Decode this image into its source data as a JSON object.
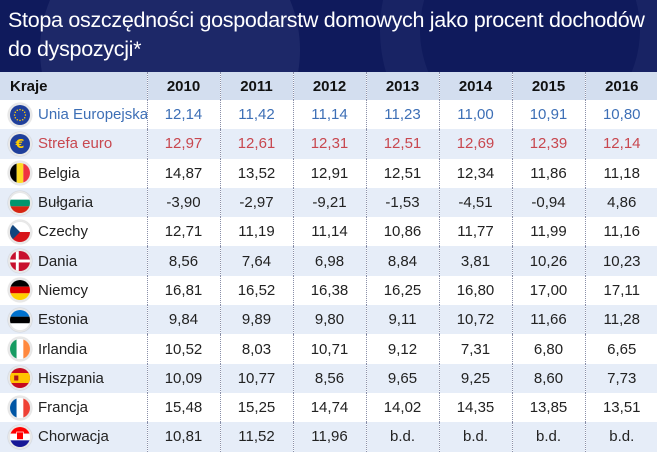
{
  "title": "Stopa oszczędności gospodarstw domowych jako procent dochodów do dyspozycji*",
  "table": {
    "header": [
      "Kraje",
      "2010",
      "2011",
      "2012",
      "2013",
      "2014",
      "2015",
      "2016"
    ],
    "rows": [
      {
        "country": "Unia Europejska",
        "flag": "eu-flag-icon",
        "values": [
          "12,14",
          "11,42",
          "11,14",
          "11,23",
          "11,00",
          "10,91",
          "10,80"
        ]
      },
      {
        "country": "Strefa euro",
        "flag": "euro-sign-icon",
        "values": [
          "12,97",
          "12,61",
          "12,31",
          "12,51",
          "12,69",
          "12,39",
          "12,14"
        ]
      },
      {
        "country": "Belgia",
        "flag": "belgium-flag-icon",
        "values": [
          "14,87",
          "13,52",
          "12,91",
          "12,51",
          "12,34",
          "11,86",
          "11,18"
        ]
      },
      {
        "country": "Bułgaria",
        "flag": "bulgaria-flag-icon",
        "values": [
          "-3,90",
          "-2,97",
          "-9,21",
          "-1,53",
          "-4,51",
          "-0,94",
          "4,86"
        ]
      },
      {
        "country": "Czechy",
        "flag": "czech-flag-icon",
        "values": [
          "12,71",
          "11,19",
          "11,14",
          "10,86",
          "11,77",
          "11,99",
          "11,16"
        ]
      },
      {
        "country": "Dania",
        "flag": "denmark-flag-icon",
        "values": [
          "8,56",
          "7,64",
          "6,98",
          "8,84",
          "3,81",
          "10,26",
          "10,23"
        ]
      },
      {
        "country": "Niemcy",
        "flag": "germany-flag-icon",
        "values": [
          "16,81",
          "16,52",
          "16,38",
          "16,25",
          "16,80",
          "17,00",
          "17,11"
        ]
      },
      {
        "country": "Estonia",
        "flag": "estonia-flag-icon",
        "values": [
          "9,84",
          "9,89",
          "9,80",
          "9,11",
          "10,72",
          "11,66",
          "11,28"
        ]
      },
      {
        "country": "Irlandia",
        "flag": "ireland-flag-icon",
        "values": [
          "10,52",
          "8,03",
          "10,71",
          "9,12",
          "7,31",
          "6,80",
          "6,65"
        ]
      },
      {
        "country": "Hiszpania",
        "flag": "spain-flag-icon",
        "values": [
          "10,09",
          "10,77",
          "8,56",
          "9,65",
          "9,25",
          "8,60",
          "7,73"
        ]
      },
      {
        "country": "Francja",
        "flag": "france-flag-icon",
        "values": [
          "15,48",
          "15,25",
          "14,74",
          "14,02",
          "14,35",
          "13,85",
          "13,51"
        ]
      },
      {
        "country": "Chorwacja",
        "flag": "croatia-flag-icon",
        "values": [
          "10,81",
          "11,52",
          "11,96",
          "b.d.",
          "b.d.",
          "b.d.",
          "b.d."
        ]
      }
    ]
  },
  "colors": {
    "header_bg": "#0f1a5c",
    "column_header_bg": "#d3deef",
    "eu_text": "#3d6fb6",
    "eurozone_text": "#c8474f",
    "row_alt_bg": "#e6edf8"
  },
  "chart_data": {
    "type": "table",
    "title": "Stopa oszczędności gospodarstw domowych jako procent dochodów do dyspozycji*",
    "columns": [
      "Kraje",
      "2010",
      "2011",
      "2012",
      "2013",
      "2014",
      "2015",
      "2016"
    ],
    "x": [
      2010,
      2011,
      2012,
      2013,
      2014,
      2015,
      2016
    ],
    "series": [
      {
        "name": "Unia Europejska",
        "values": [
          12.14,
          11.42,
          11.14,
          11.23,
          11.0,
          10.91,
          10.8
        ]
      },
      {
        "name": "Strefa euro",
        "values": [
          12.97,
          12.61,
          12.31,
          12.51,
          12.69,
          12.39,
          12.14
        ]
      },
      {
        "name": "Belgia",
        "values": [
          14.87,
          13.52,
          12.91,
          12.51,
          12.34,
          11.86,
          11.18
        ]
      },
      {
        "name": "Bułgaria",
        "values": [
          -3.9,
          -2.97,
          -9.21,
          -1.53,
          -4.51,
          -0.94,
          4.86
        ]
      },
      {
        "name": "Czechy",
        "values": [
          12.71,
          11.19,
          11.14,
          10.86,
          11.77,
          11.99,
          11.16
        ]
      },
      {
        "name": "Dania",
        "values": [
          8.56,
          7.64,
          6.98,
          8.84,
          3.81,
          10.26,
          10.23
        ]
      },
      {
        "name": "Niemcy",
        "values": [
          16.81,
          16.52,
          16.38,
          16.25,
          16.8,
          17.0,
          17.11
        ]
      },
      {
        "name": "Estonia",
        "values": [
          9.84,
          9.89,
          9.8,
          9.11,
          10.72,
          11.66,
          11.28
        ]
      },
      {
        "name": "Irlandia",
        "values": [
          10.52,
          8.03,
          10.71,
          9.12,
          7.31,
          6.8,
          6.65
        ]
      },
      {
        "name": "Hiszpania",
        "values": [
          10.09,
          10.77,
          8.56,
          9.65,
          9.25,
          8.6,
          7.73
        ]
      },
      {
        "name": "Francja",
        "values": [
          15.48,
          15.25,
          14.74,
          14.02,
          14.35,
          13.85,
          13.51
        ]
      },
      {
        "name": "Chorwacja",
        "values": [
          10.81,
          11.52,
          11.96,
          null,
          null,
          null,
          null
        ]
      }
    ]
  }
}
